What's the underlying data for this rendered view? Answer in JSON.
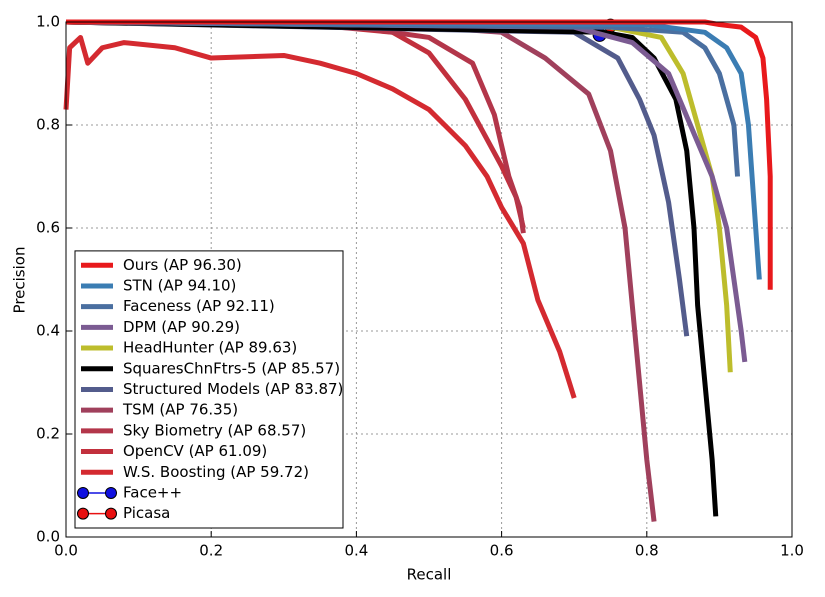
{
  "chart_data": {
    "type": "line",
    "x_label": "Recall",
    "y_label": "Precision",
    "xlim": [
      0,
      1
    ],
    "ylim": [
      0,
      1
    ],
    "xticks": [
      {
        "value": 0,
        "label": "0.0"
      },
      0.2,
      0.4,
      0.6,
      0.8,
      {
        "value": 1,
        "label": "1.0"
      }
    ],
    "yticks": [
      {
        "value": 0,
        "label": "0.0"
      },
      0.2,
      0.4,
      0.6,
      0.8,
      {
        "value": 1,
        "label": "1.0"
      }
    ],
    "grid": true,
    "legend": "lower left",
    "series": [
      {
        "name": "Ours (AP 96.30)",
        "color": "#e8191c",
        "x": [
          0,
          0.88,
          0.9,
          0.93,
          0.95,
          0.96,
          0.965,
          0.97,
          0.97
        ],
        "values": [
          1,
          1,
          0.995,
          0.99,
          0.97,
          0.93,
          0.85,
          0.7,
          0.48
        ]
      },
      {
        "name": "STN (AP 94.10)",
        "color": "#3b7db3",
        "x": [
          0,
          0.8,
          0.88,
          0.91,
          0.93,
          0.94,
          0.945,
          0.95,
          0.955
        ],
        "values": [
          1,
          0.995,
          0.98,
          0.95,
          0.9,
          0.8,
          0.7,
          0.6,
          0.5
        ]
      },
      {
        "name": "Faceness (AP 92.11)",
        "color": "#4a6fa0",
        "x": [
          0,
          0.75,
          0.85,
          0.88,
          0.9,
          0.92,
          0.925
        ],
        "values": [
          1,
          0.99,
          0.98,
          0.95,
          0.9,
          0.8,
          0.7
        ]
      },
      {
        "name": "DPM (AP 90.29)",
        "color": "#7b5b92",
        "x": [
          0,
          0.7,
          0.78,
          0.83,
          0.86,
          0.89,
          0.91,
          0.92,
          0.93,
          0.935
        ],
        "values": [
          1,
          0.99,
          0.96,
          0.9,
          0.8,
          0.7,
          0.6,
          0.5,
          0.4,
          0.34
        ]
      },
      {
        "name": "HeadHunter (AP 89.63)",
        "color": "#bdbd2c",
        "x": [
          0,
          0.75,
          0.82,
          0.85,
          0.87,
          0.89,
          0.9,
          0.91,
          0.915
        ],
        "values": [
          1,
          0.99,
          0.97,
          0.9,
          0.8,
          0.7,
          0.6,
          0.45,
          0.32
        ]
      },
      {
        "name": "SquaresChnFtrs-5 (AP 85.57)",
        "color": "#000000",
        "x": [
          0,
          0.74,
          0.78,
          0.81,
          0.84,
          0.855,
          0.865,
          0.87,
          0.88,
          0.89,
          0.895
        ],
        "values": [
          1,
          0.98,
          0.97,
          0.93,
          0.85,
          0.75,
          0.6,
          0.45,
          0.3,
          0.15,
          0.04
        ]
      },
      {
        "name": "Structured Models (AP 83.87)",
        "color": "#535c8c",
        "x": [
          0,
          0.7,
          0.76,
          0.79,
          0.81,
          0.83,
          0.845,
          0.855
        ],
        "values": [
          1,
          0.98,
          0.93,
          0.85,
          0.78,
          0.65,
          0.5,
          0.39
        ]
      },
      {
        "name": "TSM (AP 76.35)",
        "color": "#a0405c",
        "x": [
          0,
          0.5,
          0.6,
          0.66,
          0.72,
          0.75,
          0.77,
          0.78,
          0.79,
          0.8,
          0.81
        ],
        "values": [
          1,
          0.99,
          0.98,
          0.93,
          0.86,
          0.75,
          0.6,
          0.45,
          0.3,
          0.15,
          0.03
        ]
      },
      {
        "name": "Sky Biometry (AP 68.57)",
        "color": "#b3364a",
        "x": [
          0,
          0.4,
          0.5,
          0.56,
          0.59,
          0.61,
          0.625,
          0.63
        ],
        "values": [
          1,
          0.99,
          0.97,
          0.92,
          0.82,
          0.7,
          0.64,
          0.59
        ]
      },
      {
        "name": "OpenCV (AP 61.09)",
        "color": "#c2303d",
        "x": [
          0,
          0.3,
          0.45,
          0.5,
          0.55,
          0.6,
          0.62,
          0.63
        ],
        "values": [
          1,
          1,
          0.98,
          0.94,
          0.85,
          0.72,
          0.66,
          0.6
        ]
      },
      {
        "name": "W.S. Boosting (AP 59.72)",
        "color": "#d42a30",
        "x": [
          0,
          0.005,
          0.02,
          0.03,
          0.05,
          0.08,
          0.15,
          0.2,
          0.3,
          0.35,
          0.4,
          0.45,
          0.5,
          0.55,
          0.58,
          0.6,
          0.63,
          0.65,
          0.68,
          0.7
        ],
        "values": [
          0.83,
          0.95,
          0.97,
          0.92,
          0.95,
          0.96,
          0.95,
          0.93,
          0.935,
          0.92,
          0.9,
          0.87,
          0.83,
          0.76,
          0.7,
          0.64,
          0.57,
          0.46,
          0.36,
          0.27
        ]
      },
      {
        "name": "Face++",
        "color": "#1010e0",
        "marker": true,
        "x": [
          0.735
        ],
        "values": [
          0.975
        ]
      },
      {
        "name": "Picasa",
        "color": "#e81010",
        "marker": true,
        "x": [
          0.75
        ],
        "values": [
          0.993
        ]
      }
    ]
  }
}
